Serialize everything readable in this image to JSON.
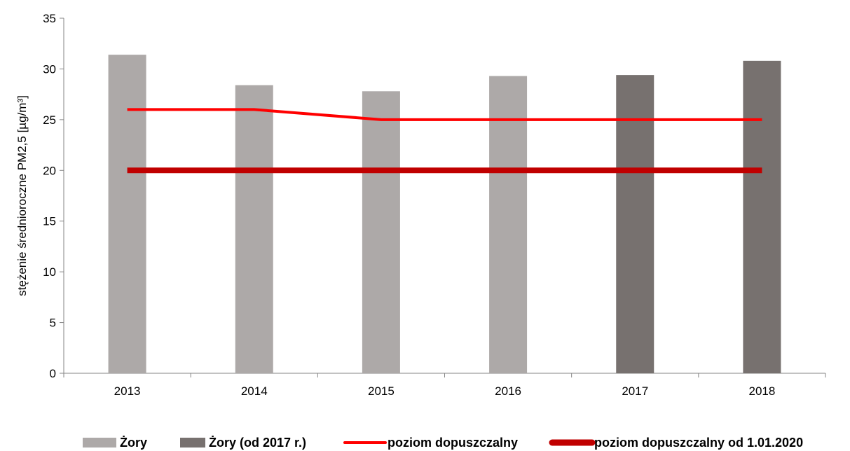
{
  "chart_data": {
    "type": "bar",
    "categories": [
      "2013",
      "2014",
      "2015",
      "2016",
      "2017",
      "2018"
    ],
    "ylabel": "stężenie średnioroczne PM2,5 [µg/m³]",
    "ylim": [
      0,
      35
    ],
    "yticks": [
      0,
      5,
      10,
      15,
      20,
      25,
      30,
      35
    ],
    "grid": false,
    "legend_position": "bottom",
    "series": [
      {
        "name": "Żory",
        "kind": "bar",
        "color": "#ADA9A8",
        "values": [
          31.4,
          28.4,
          27.8,
          29.3,
          null,
          null
        ]
      },
      {
        "name": "Żory (od 2017 r.)",
        "kind": "bar",
        "color": "#77716F",
        "values": [
          null,
          null,
          null,
          null,
          29.4,
          30.8
        ]
      },
      {
        "name": "poziom dopuszczalny",
        "kind": "line",
        "color": "#FF0000",
        "values": [
          26,
          26,
          25,
          25,
          25,
          25
        ]
      },
      {
        "name": "poziom dopuszczalny od 1.01.2020",
        "kind": "line",
        "color": "#C00000",
        "values": [
          20,
          20,
          20,
          20,
          20,
          20
        ]
      }
    ]
  }
}
